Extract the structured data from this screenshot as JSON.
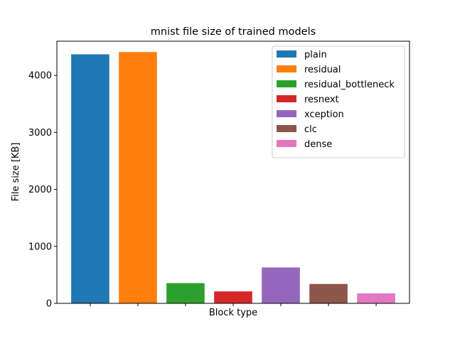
{
  "chart_data": {
    "type": "bar",
    "title": "mnist file size of trained models",
    "xlabel": "Block type",
    "ylabel": "File size [KB]",
    "ylim": [
      0,
      4600
    ],
    "yticks": [
      0,
      1000,
      2000,
      3000,
      4000
    ],
    "show_x_tick_labels": false,
    "grid": false,
    "legend_position": "top-right",
    "series": [
      {
        "name": "plain",
        "value": 4370,
        "color": "#1f77b4"
      },
      {
        "name": "residual",
        "value": 4410,
        "color": "#ff7f0e"
      },
      {
        "name": "residual_bottleneck",
        "value": 355,
        "color": "#2ca02c"
      },
      {
        "name": "resnext",
        "value": 210,
        "color": "#d62728"
      },
      {
        "name": "xception",
        "value": 630,
        "color": "#9467bd"
      },
      {
        "name": "clc",
        "value": 340,
        "color": "#8c564b"
      },
      {
        "name": "dense",
        "value": 175,
        "color": "#e377c2"
      }
    ]
  }
}
